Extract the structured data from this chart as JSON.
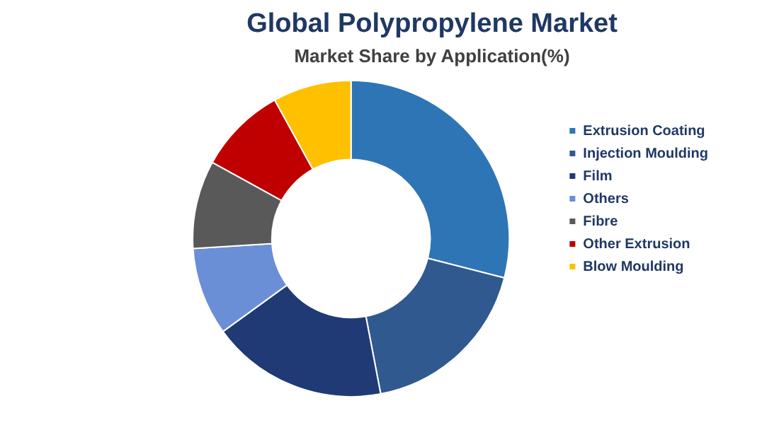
{
  "chart_data": {
    "type": "donut",
    "title": "Global Polypropylene Market",
    "subtitle": "Market Share by Application(%)",
    "categories": [
      "Extrusion Coating",
      "Injection Moulding",
      "Film",
      "Others",
      "Fibre",
      "Other Extrusion",
      "Blow Moulding"
    ],
    "values": [
      29,
      18,
      18,
      9,
      9,
      9,
      8
    ],
    "colors": [
      "#2e75b6",
      "#30598f",
      "#1f3a75",
      "#6a8fd6",
      "#595959",
      "#c00000",
      "#ffc000"
    ],
    "legend": "right"
  }
}
